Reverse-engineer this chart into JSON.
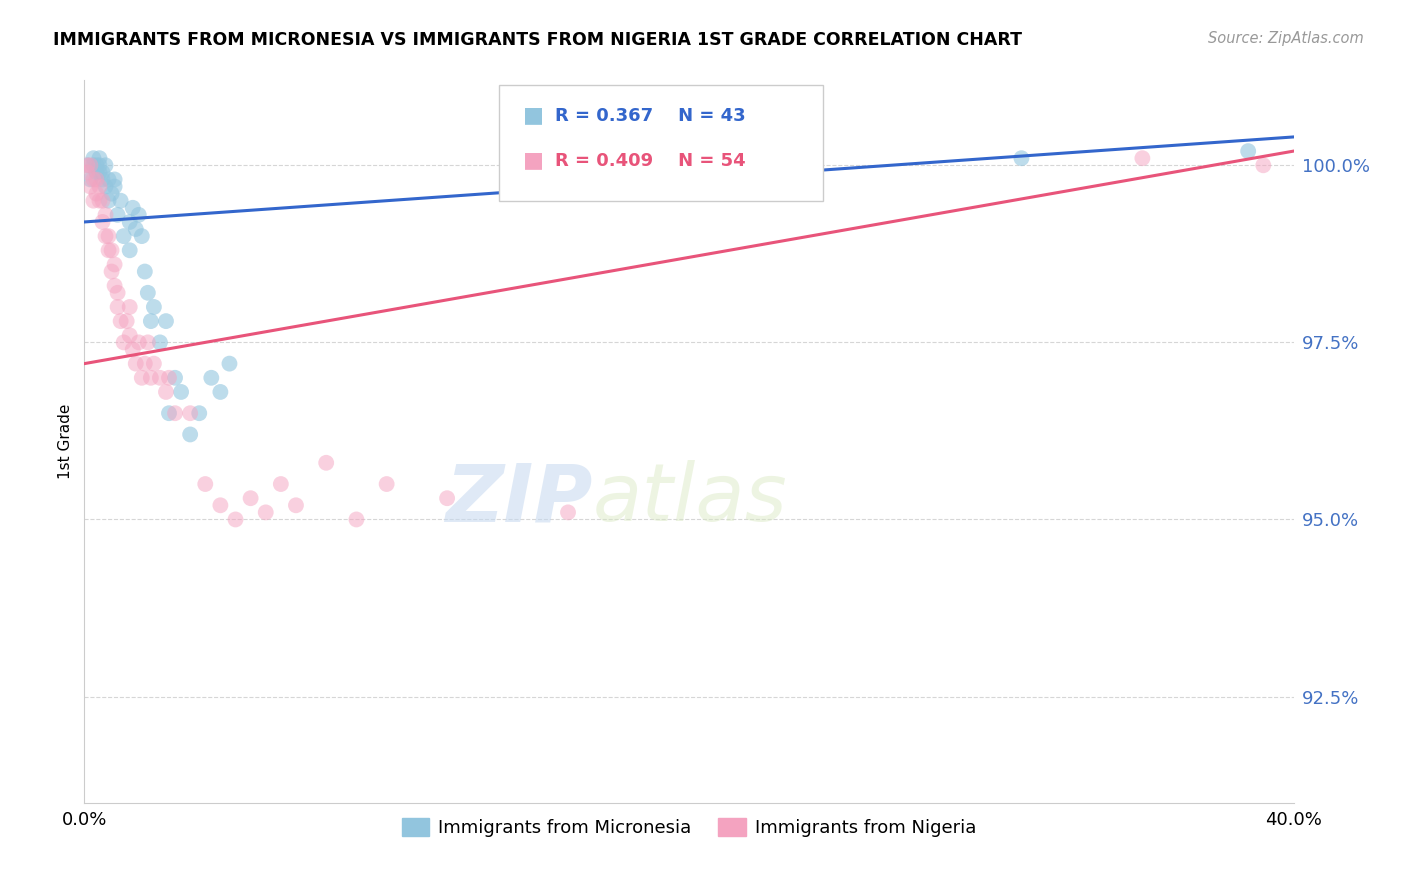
{
  "title": "IMMIGRANTS FROM MICRONESIA VS IMMIGRANTS FROM NIGERIA 1ST GRADE CORRELATION CHART",
  "source": "Source: ZipAtlas.com",
  "ylabel": "1st Grade",
  "yticks": [
    92.5,
    95.0,
    97.5,
    100.0
  ],
  "ytick_labels": [
    "92.5%",
    "95.0%",
    "97.5%",
    "100.0%"
  ],
  "xlim": [
    0.0,
    0.4
  ],
  "ylim": [
    91.0,
    101.2
  ],
  "legend_blue_label": "Immigrants from Micronesia",
  "legend_pink_label": "Immigrants from Nigeria",
  "R_blue": 0.367,
  "N_blue": 43,
  "R_pink": 0.409,
  "N_pink": 54,
  "blue_color": "#92c5de",
  "pink_color": "#f4a3c0",
  "blue_line_color": "#3366cc",
  "pink_line_color": "#e8547a",
  "watermark_zip": "ZIP",
  "watermark_atlas": "atlas",
  "blue_x": [
    0.001,
    0.002,
    0.003,
    0.003,
    0.004,
    0.004,
    0.005,
    0.005,
    0.005,
    0.006,
    0.006,
    0.007,
    0.007,
    0.008,
    0.008,
    0.009,
    0.01,
    0.01,
    0.011,
    0.012,
    0.013,
    0.015,
    0.015,
    0.016,
    0.017,
    0.018,
    0.019,
    0.02,
    0.021,
    0.022,
    0.023,
    0.025,
    0.027,
    0.028,
    0.03,
    0.032,
    0.035,
    0.038,
    0.042,
    0.045,
    0.048,
    0.31,
    0.385
  ],
  "blue_y": [
    100.0,
    99.8,
    100.1,
    100.0,
    99.9,
    100.0,
    100.0,
    99.9,
    100.1,
    99.8,
    99.9,
    100.0,
    99.7,
    99.5,
    99.8,
    99.6,
    99.7,
    99.8,
    99.3,
    99.5,
    99.0,
    98.8,
    99.2,
    99.4,
    99.1,
    99.3,
    99.0,
    98.5,
    98.2,
    97.8,
    98.0,
    97.5,
    97.8,
    96.5,
    97.0,
    96.8,
    96.2,
    96.5,
    97.0,
    96.8,
    97.2,
    100.1,
    100.2
  ],
  "pink_x": [
    0.001,
    0.001,
    0.002,
    0.002,
    0.003,
    0.003,
    0.004,
    0.004,
    0.005,
    0.005,
    0.006,
    0.006,
    0.007,
    0.007,
    0.008,
    0.008,
    0.009,
    0.009,
    0.01,
    0.01,
    0.011,
    0.011,
    0.012,
    0.013,
    0.014,
    0.015,
    0.015,
    0.016,
    0.017,
    0.018,
    0.019,
    0.02,
    0.021,
    0.022,
    0.023,
    0.025,
    0.027,
    0.028,
    0.03,
    0.035,
    0.04,
    0.045,
    0.05,
    0.055,
    0.06,
    0.065,
    0.07,
    0.08,
    0.09,
    0.1,
    0.12,
    0.16,
    0.35,
    0.39
  ],
  "pink_y": [
    99.9,
    100.0,
    99.7,
    100.0,
    99.5,
    99.8,
    99.6,
    99.8,
    99.5,
    99.7,
    99.2,
    99.5,
    99.0,
    99.3,
    98.8,
    99.0,
    98.5,
    98.8,
    98.3,
    98.6,
    98.0,
    98.2,
    97.8,
    97.5,
    97.8,
    97.6,
    98.0,
    97.4,
    97.2,
    97.5,
    97.0,
    97.2,
    97.5,
    97.0,
    97.2,
    97.0,
    96.8,
    97.0,
    96.5,
    96.5,
    95.5,
    95.2,
    95.0,
    95.3,
    95.1,
    95.5,
    95.2,
    95.8,
    95.0,
    95.5,
    95.3,
    95.1,
    100.1,
    100.0
  ],
  "blue_trend_x": [
    0.0,
    0.4
  ],
  "blue_trend_y": [
    99.2,
    100.4
  ],
  "pink_trend_x": [
    0.0,
    0.4
  ],
  "pink_trend_y": [
    97.2,
    100.2
  ]
}
